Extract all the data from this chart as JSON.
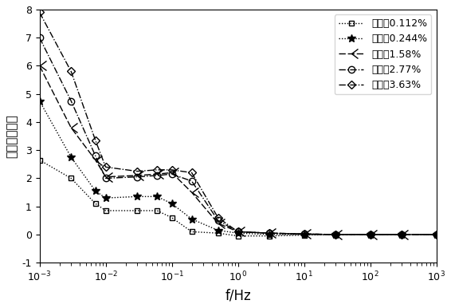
{
  "title": "",
  "xlabel": "f/Hz",
  "ylabel": "介质损耗因数",
  "xlim": [
    0.001,
    1000
  ],
  "ylim": [
    -1,
    8
  ],
  "yticks": [
    -1,
    0,
    1,
    2,
    3,
    4,
    5,
    6,
    7,
    8
  ],
  "background_color": "#ffffff",
  "series": [
    {
      "label": "含水率0.112%",
      "linestyle": "dotted",
      "marker": "s",
      "color": "#000000",
      "markersize": 5,
      "markerfacecolor": "none",
      "x": [
        0.001,
        0.003,
        0.007,
        0.01,
        0.03,
        0.06,
        0.1,
        0.2,
        0.5,
        1.0,
        3.0,
        10.0,
        30.0,
        100.0,
        300.0,
        1000.0
      ],
      "y": [
        2.65,
        2.0,
        1.1,
        0.85,
        0.85,
        0.85,
        0.6,
        0.1,
        0.05,
        -0.05,
        -0.05,
        -0.02,
        0.0,
        0.0,
        0.0,
        0.0
      ]
    },
    {
      "label": "含水率0.244%",
      "linestyle": "dotted",
      "marker": "*",
      "color": "#000000",
      "markersize": 7,
      "markerfacecolor": "black",
      "x": [
        0.001,
        0.003,
        0.007,
        0.01,
        0.03,
        0.06,
        0.1,
        0.2,
        0.5,
        1.0,
        3.0,
        10.0,
        30.0,
        100.0,
        300.0,
        1000.0
      ],
      "y": [
        4.75,
        2.75,
        1.55,
        1.3,
        1.35,
        1.35,
        1.1,
        0.55,
        0.15,
        0.05,
        0.0,
        0.0,
        0.0,
        0.0,
        0.0,
        0.0
      ]
    },
    {
      "label": "含水率1.58%",
      "linestyle": "dashed",
      "marker": "tri_right",
      "color": "#000000",
      "markersize": 8,
      "markerfacecolor": "none",
      "x": [
        0.001,
        0.003,
        0.007,
        0.01,
        0.03,
        0.06,
        0.1,
        0.2,
        0.5,
        1.0,
        3.0,
        10.0,
        30.0,
        100.0,
        300.0,
        1000.0
      ],
      "y": [
        6.0,
        3.8,
        2.65,
        2.05,
        2.1,
        2.15,
        2.2,
        1.5,
        0.4,
        0.1,
        0.05,
        0.02,
        0.0,
        0.0,
        0.0,
        0.0
      ]
    },
    {
      "label": "含水率2.77%",
      "linestyle": "dashdot",
      "marker": "o",
      "color": "#000000",
      "markersize": 6,
      "markerfacecolor": "none",
      "x": [
        0.001,
        0.003,
        0.007,
        0.01,
        0.03,
        0.06,
        0.1,
        0.2,
        0.5,
        1.0,
        3.0,
        10.0,
        30.0,
        100.0,
        300.0,
        1000.0
      ],
      "y": [
        7.0,
        4.75,
        2.8,
        2.0,
        2.05,
        2.1,
        2.15,
        1.9,
        0.5,
        0.1,
        0.05,
        0.02,
        0.0,
        0.0,
        0.0,
        0.0
      ]
    },
    {
      "label": "含水率3.63%",
      "linestyle": "dashdot",
      "marker": "D",
      "color": "#000000",
      "markersize": 5,
      "markerfacecolor": "none",
      "x": [
        0.001,
        0.003,
        0.007,
        0.01,
        0.03,
        0.06,
        0.1,
        0.2,
        0.5,
        1.0,
        3.0,
        10.0,
        30.0,
        100.0,
        300.0,
        1000.0
      ],
      "y": [
        7.9,
        5.8,
        3.35,
        2.4,
        2.25,
        2.3,
        2.3,
        2.2,
        0.6,
        0.1,
        0.05,
        0.02,
        0.0,
        0.0,
        0.0,
        0.0
      ]
    }
  ]
}
